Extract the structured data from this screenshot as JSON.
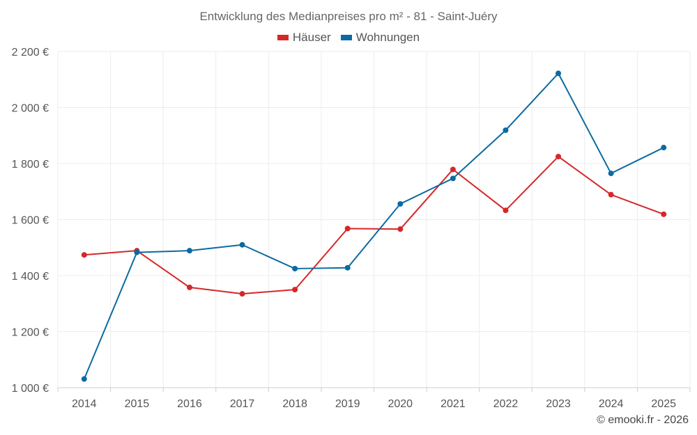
{
  "chart_data": {
    "type": "line",
    "title": "Entwicklung des Medianpreises pro m² - 81 - Saint-Juéry",
    "xlabel": "",
    "ylabel": "",
    "categories": [
      "2014",
      "2015",
      "2016",
      "2017",
      "2018",
      "2019",
      "2020",
      "2021",
      "2022",
      "2023",
      "2024",
      "2025"
    ],
    "ylim": [
      1000,
      2200
    ],
    "yticks": [
      1000,
      1200,
      1400,
      1600,
      1800,
      2000,
      2200
    ],
    "ytick_labels": [
      "1 000 €",
      "1 200 €",
      "1 400 €",
      "1 600 €",
      "1 800 €",
      "2 000 €",
      "2 200 €"
    ],
    "grid": true,
    "legend_position": "top-center",
    "series": [
      {
        "name": "Häuser",
        "color": "#d62728",
        "values": [
          1474,
          1489,
          1358,
          1335,
          1350,
          1568,
          1566,
          1779,
          1633,
          1825,
          1689,
          1619
        ]
      },
      {
        "name": "Wohnungen",
        "color": "#0b6aa2",
        "values": [
          1031,
          1483,
          1489,
          1510,
          1425,
          1428,
          1656,
          1747,
          1919,
          2122,
          1765,
          1857
        ]
      }
    ]
  },
  "footer": {
    "copyright": "© emooki.fr - 2026"
  }
}
